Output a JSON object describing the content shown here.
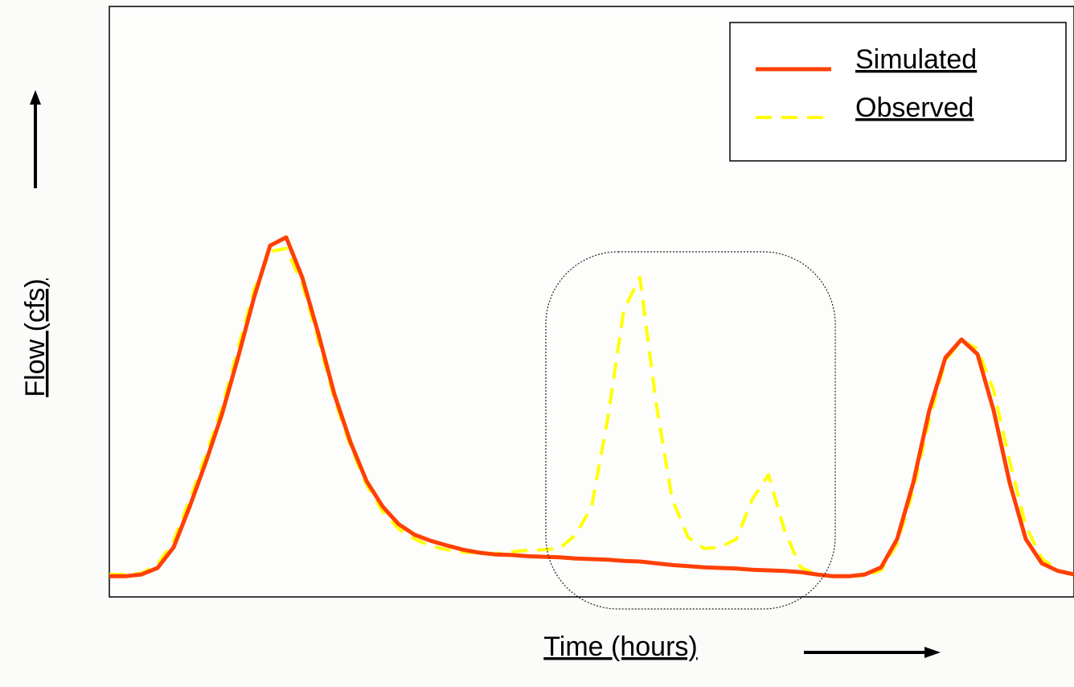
{
  "chart_data": {
    "type": "line",
    "x_label": "Time (hours)",
    "y_label": "Flow (cfs)",
    "xlim": [
      0,
      120
    ],
    "ylim": [
      0,
      100
    ],
    "legend": "upper right",
    "x": [
      0,
      2,
      4,
      6,
      8,
      10,
      12,
      14,
      16,
      18,
      20,
      22,
      24,
      26,
      28,
      30,
      32,
      34,
      36,
      38,
      40,
      42,
      44,
      46,
      48,
      50,
      52,
      54,
      56,
      58,
      60,
      62,
      64,
      66,
      68,
      70,
      72,
      74,
      76,
      78,
      80,
      82,
      84,
      86,
      88,
      90,
      92,
      94,
      96,
      98,
      100,
      102,
      104,
      106,
      108,
      110,
      112,
      114,
      116,
      118,
      120
    ],
    "series": [
      {
        "name": "Observed",
        "color": "#ffff00",
        "dashed": true,
        "values": [
          3.8,
          3.8,
          4.0,
          5.5,
          9.5,
          16.5,
          24,
          32,
          42,
          52,
          58.5,
          59.0,
          53,
          43.5,
          33.5,
          25.5,
          19,
          14.5,
          11.5,
          9.8,
          8.6,
          8.0,
          7.6,
          7.4,
          7.3,
          7.6,
          7.9,
          8.0,
          8.2,
          10.5,
          15.3,
          30.2,
          48.6,
          54.1,
          33.0,
          16.6,
          10.1,
          8.2,
          8.4,
          9.8,
          16.6,
          20.7,
          11.2,
          5.0,
          3.8,
          3.5,
          3.5,
          3.6,
          4.5,
          9.0,
          18.0,
          30,
          40,
          43.5,
          42,
          35,
          23,
          12,
          6.5,
          4.5,
          3.8
        ]
      },
      {
        "name": "Simulated",
        "color": "#ff4000",
        "dashed": false,
        "values": [
          3.5,
          3.5,
          3.8,
          4.9,
          8.4,
          15.3,
          22.8,
          30.9,
          40.5,
          50.7,
          59.5,
          60.9,
          54.1,
          44.6,
          34.3,
          26.2,
          19.6,
          15.3,
          12.3,
          10.5,
          9.5,
          8.7,
          8.0,
          7.5,
          7.2,
          7.1,
          6.9,
          6.8,
          6.7,
          6.5,
          6.4,
          6.3,
          6.1,
          6.0,
          5.7,
          5.4,
          5.2,
          5.0,
          4.9,
          4.8,
          4.6,
          4.5,
          4.4,
          4.2,
          3.8,
          3.5,
          3.5,
          3.8,
          5.0,
          9.8,
          19.3,
          31.6,
          40.5,
          43.6,
          41.1,
          31.6,
          19.3,
          9.8,
          5.7,
          4.4,
          3.8
        ]
      }
    ]
  }
}
